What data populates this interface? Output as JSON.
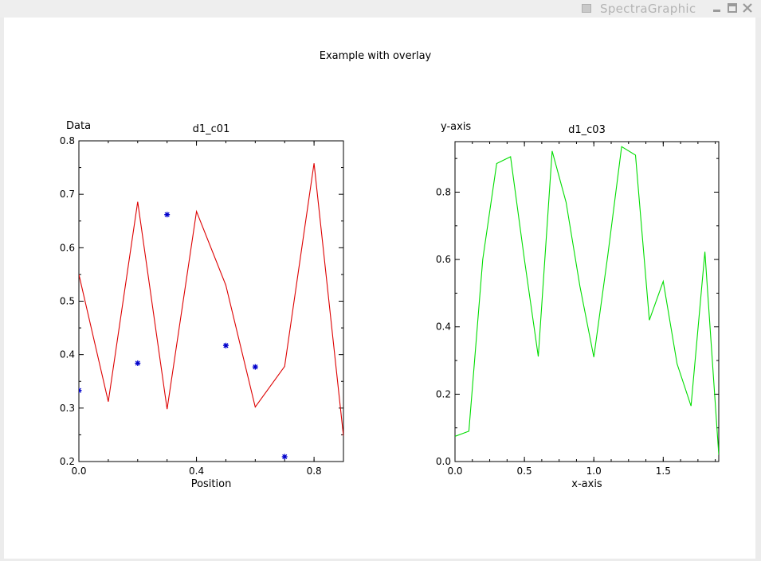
{
  "window": {
    "title": "SpectraGraphic",
    "icons": [
      "app-icon",
      "minimize-icon",
      "maximize-icon",
      "close-icon"
    ]
  },
  "figure_title": "Example with overlay",
  "chart_data": [
    {
      "type": "line",
      "title": "d1_c01",
      "xlabel": "Position",
      "ylabel": "Data",
      "xlim": [
        0.0,
        0.9
      ],
      "ylim": [
        0.2,
        0.8
      ],
      "xticks": [
        0.0,
        0.4,
        0.8
      ],
      "xtick_labels": [
        "0.0",
        "0.4",
        "0.8"
      ],
      "yticks": [
        0.2,
        0.3,
        0.4,
        0.5,
        0.6,
        0.7,
        0.8
      ],
      "ytick_labels": [
        "0.2",
        "0.3",
        "0.4",
        "0.5",
        "0.6",
        "0.7",
        "0.8"
      ],
      "grid": false,
      "series": [
        {
          "type": "line",
          "color": "#dd0000",
          "x": [
            0.0,
            0.1,
            0.2,
            0.3,
            0.4,
            0.5,
            0.6,
            0.7,
            0.8,
            0.9
          ],
          "y": [
            0.55,
            0.312,
            0.686,
            0.298,
            0.668,
            0.53,
            0.302,
            0.378,
            0.758,
            0.248
          ]
        },
        {
          "type": "scatter",
          "marker": "asterisk",
          "color": "#0000cc",
          "x": [
            0.0,
            0.2,
            0.3,
            0.5,
            0.6,
            0.7
          ],
          "y": [
            0.333,
            0.384,
            0.662,
            0.417,
            0.377,
            0.209
          ]
        }
      ]
    },
    {
      "type": "line",
      "title": "d1_c03",
      "xlabel": "x-axis",
      "ylabel": "y-axis",
      "xlim": [
        0.0,
        1.9
      ],
      "ylim": [
        0.0,
        0.95
      ],
      "xticks": [
        0.0,
        0.5,
        1.0,
        1.5
      ],
      "xtick_labels": [
        "0.0",
        "0.5",
        "1.0",
        "1.5"
      ],
      "yticks": [
        0.0,
        0.2,
        0.4,
        0.6,
        0.8
      ],
      "ytick_labels": [
        "0.0",
        "0.2",
        "0.4",
        "0.6",
        "0.8"
      ],
      "grid": false,
      "series": [
        {
          "type": "line",
          "color": "#00dd00",
          "x": [
            0.0,
            0.1,
            0.2,
            0.3,
            0.4,
            0.5,
            0.6,
            0.7,
            0.8,
            0.9,
            1.0,
            1.1,
            1.2,
            1.3,
            1.4,
            1.5,
            1.6,
            1.7,
            1.8,
            1.9
          ],
          "y": [
            0.075,
            0.09,
            0.6,
            0.885,
            0.905,
            0.6,
            0.312,
            0.922,
            0.77,
            0.52,
            0.31,
            0.61,
            0.935,
            0.91,
            0.42,
            0.535,
            0.29,
            0.165,
            0.623,
            0.02
          ]
        }
      ]
    }
  ]
}
